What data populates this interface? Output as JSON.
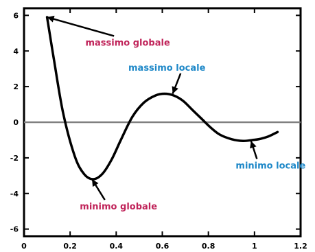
{
  "chart_data": {
    "type": "line",
    "title": "",
    "xlabel": "",
    "ylabel": "",
    "xlim": [
      0,
      1.2
    ],
    "ylim": [
      -6.4,
      6.4
    ],
    "grid": false,
    "x_ticks": [
      0,
      0.2,
      0.4,
      0.6,
      0.8,
      1,
      1.2
    ],
    "x_tick_labels": [
      "0",
      "0.2",
      "0.4",
      "0.6",
      "0.8",
      "1",
      "1.2"
    ],
    "y_ticks": [
      -6,
      -4,
      -2,
      0,
      2,
      4,
      6
    ],
    "y_tick_labels": [
      "-6",
      "-4",
      "-2",
      "0",
      "2",
      "4",
      "6"
    ],
    "reference_line": {
      "y": 0,
      "color": "#808080"
    },
    "series": [
      {
        "color": "#000000",
        "x": [
          0.1,
          0.13,
          0.17,
          0.22,
          0.26,
          0.3,
          0.34,
          0.38,
          0.42,
          0.47,
          0.52,
          0.57,
          0.61,
          0.65,
          0.69,
          0.73,
          0.77,
          0.81,
          0.85,
          0.9,
          0.95,
          0.99,
          1.02,
          1.06,
          1.1
        ],
        "y": [
          5.9,
          3.5,
          0.5,
          -1.9,
          -2.9,
          -3.2,
          -2.9,
          -2.1,
          -1.0,
          0.3,
          1.1,
          1.5,
          1.6,
          1.5,
          1.2,
          0.7,
          0.2,
          -0.3,
          -0.7,
          -0.95,
          -1.05,
          -1.0,
          -0.95,
          -0.8,
          -0.55
        ]
      }
    ],
    "annotations": [
      {
        "text": "massimo globale",
        "color": "#c0245a",
        "point": [
          0.1,
          5.9
        ],
        "label": [
          0.45,
          4.3
        ],
        "anchor": "middle"
      },
      {
        "text": "massimo locale",
        "color": "#1e88c8",
        "point": [
          0.645,
          1.6
        ],
        "label": [
          0.62,
          2.9
        ],
        "anchor": "middle"
      },
      {
        "text": "minimo globale",
        "color": "#c0245a",
        "point": [
          0.295,
          -3.2
        ],
        "label": [
          0.41,
          -4.9
        ],
        "anchor": "middle"
      },
      {
        "text": "minimo locale",
        "color": "#1e88c8",
        "point": [
          0.985,
          -1.05
        ],
        "label": [
          1.07,
          -2.6
        ],
        "anchor": "middle"
      }
    ]
  }
}
